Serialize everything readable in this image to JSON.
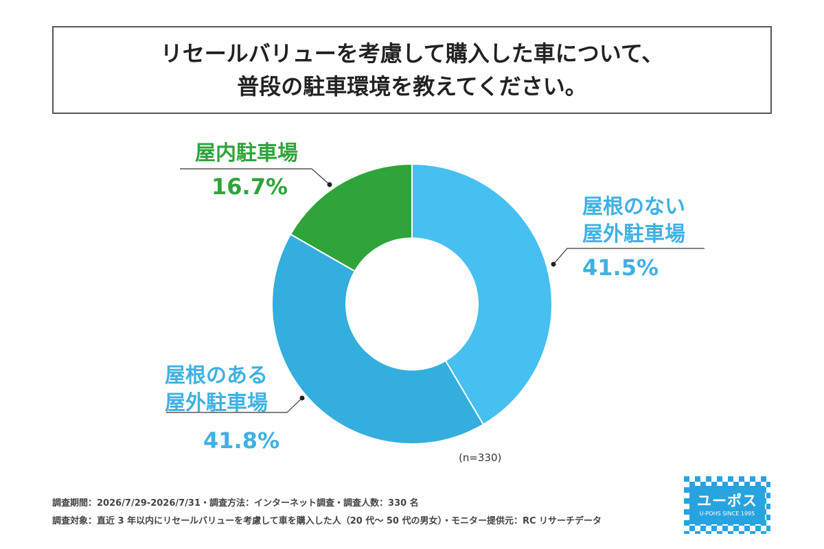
{
  "title": {
    "line1": "リセールバリューを考慮して購入した車について、",
    "line2": "普段の駐車環境を教えてください。"
  },
  "chart_data": {
    "type": "pie",
    "variant": "donut",
    "slices": [
      {
        "label_line1": "屋根のない",
        "label_line2": "屋外駐車場",
        "value": 41.5,
        "display": "41.5%",
        "color": "#47bff0"
      },
      {
        "label_line1": "屋根のある",
        "label_line2": "屋外駐車場",
        "value": 41.8,
        "display": "41.8%",
        "color": "#33aede"
      },
      {
        "label_line1": "屋内駐車場",
        "label_line2": "",
        "value": 16.7,
        "display": "16.7%",
        "color": "#2ea43a"
      }
    ],
    "sample_size": "(n=330)"
  },
  "footer": {
    "line1": "調査期間：2026/7/29-2026/7/31・調査方法：インターネット調査・調査人数：330 名",
    "line2": "調査対象：直近 3 年以内にリセールバリューを考慮して車を購入した人（20 代～ 50 代の男女）・モニター提供元：RC リサーチデータ"
  },
  "logo": {
    "name": "ユーポス",
    "sub": "U-POHS SINCE 1995",
    "color": "#29a3e0"
  }
}
